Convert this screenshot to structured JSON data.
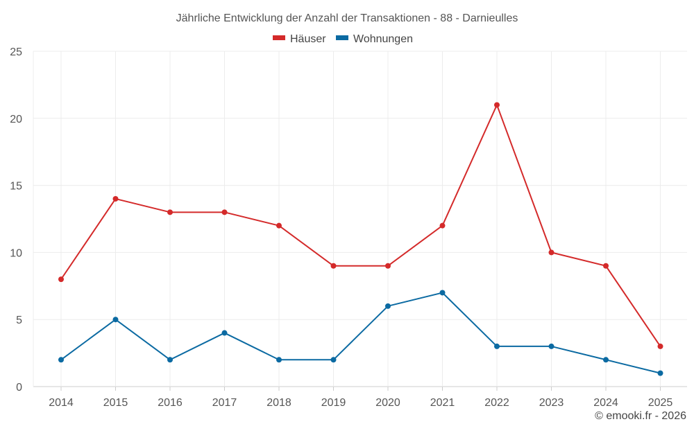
{
  "chart_data": {
    "type": "line",
    "title": "Jährliche Entwicklung der Anzahl der Transaktionen - 88 - Darnieulles",
    "categories": [
      "2014",
      "2015",
      "2016",
      "2017",
      "2018",
      "2019",
      "2020",
      "2021",
      "2022",
      "2023",
      "2024",
      "2025"
    ],
    "series": [
      {
        "name": "Häuser",
        "color": "#d42a2a",
        "values": [
          8,
          14,
          13,
          13,
          12,
          9,
          9,
          12,
          21,
          10,
          9,
          3
        ]
      },
      {
        "name": "Wohnungen",
        "color": "#0b6aa2",
        "values": [
          2,
          5,
          2,
          4,
          2,
          2,
          6,
          7,
          3,
          3,
          2,
          1
        ]
      }
    ],
    "yticks": [
      0,
      5,
      10,
      15,
      20,
      25
    ],
    "ylim": [
      0,
      25
    ],
    "xlabel": "",
    "ylabel": "",
    "grid": true,
    "legend": "top-center"
  },
  "credit": "© emooki.fr - 2026"
}
